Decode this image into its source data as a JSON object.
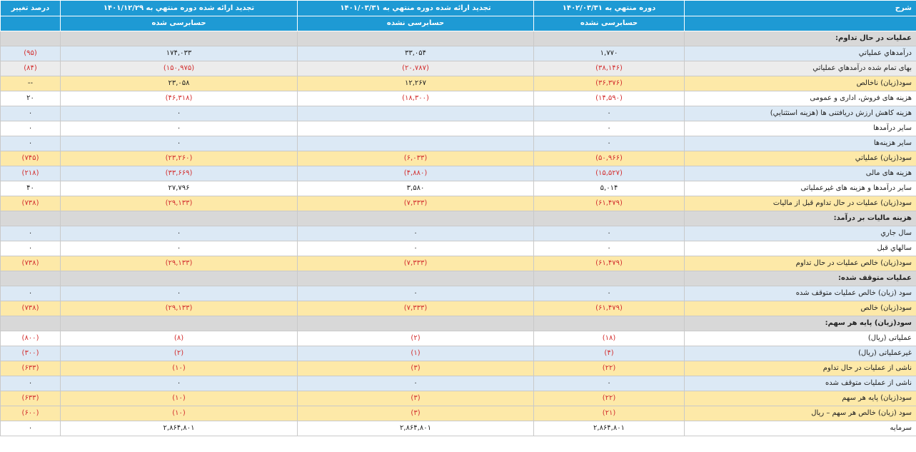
{
  "header": {
    "col_desc": "شرح",
    "col_p1": "دوره منتهي به ۱۴۰۲/۰۳/۳۱",
    "col_p2": "تجدید ارائه شده دوره منتهي به ۱۴۰۱/۰۳/۳۱",
    "col_p3": "تجدید ارائه شده دوره منتهي به ۱۴۰۱/۱۲/۲۹",
    "col_pct": "درصد تغییر",
    "audit_p1": "حسابرسی نشده",
    "audit_p2": "حسابرسی نشده",
    "audit_p3": "حسابرسی شده"
  },
  "rows": [
    {
      "kind": "section",
      "label": "عملیات در حال تداوم:"
    },
    {
      "kind": "blue",
      "label": "درآمدهاي عملياتي",
      "v": [
        "۱,۷۷۰",
        "۳۳,۰۵۴",
        "۱۷۴,۰۳۳",
        "(۹۵)"
      ]
    },
    {
      "kind": "grey",
      "label": "بهاى تمام شده درآمدهاي عملياتي",
      "v": [
        "(۳۸,۱۴۶)",
        "(۲۰,۷۸۷)",
        "(۱۵۰,۹۷۵)",
        "(۸۴)"
      ]
    },
    {
      "kind": "gold",
      "label": "سود(زيان) ناخالص",
      "v": [
        "(۳۶,۳۷۶)",
        "۱۲,۲۶۷",
        "۲۳,۰۵۸",
        "--"
      ]
    },
    {
      "kind": "white",
      "label": "هزينه هاى فروش، ادارى و عمومى",
      "v": [
        "(۱۴,۵۹۰)",
        "(۱۸,۳۰۰)",
        "(۴۶,۳۱۸)",
        "۲۰"
      ]
    },
    {
      "kind": "blue",
      "label": "هزینه کاهش ارزش دریافتنی ها (هزينه استثنايي)",
      "v": [
        "۰",
        "",
        "۰",
        "۰"
      ]
    },
    {
      "kind": "white",
      "label": "ساير درآمدها",
      "v": [
        "۰",
        "",
        "۰",
        "۰"
      ]
    },
    {
      "kind": "blue",
      "label": "سایر هزینه‌ها",
      "v": [
        "۰",
        "",
        "۰",
        "۰"
      ]
    },
    {
      "kind": "gold",
      "label": "سود(زيان) عملياتي",
      "v": [
        "(۵۰,۹۶۶)",
        "(۶,۰۳۳)",
        "(۲۳,۲۶۰)",
        "(۷۴۵)"
      ]
    },
    {
      "kind": "blue",
      "label": "هزينه هاى مالى",
      "v": [
        "(۱۵,۵۲۷)",
        "(۴,۸۸۰)",
        "(۳۳,۶۶۹)",
        "(۲۱۸)"
      ]
    },
    {
      "kind": "white",
      "label": "ساير درآمدها و هزينه هاى غيرعملياتى",
      "v": [
        "۵,۰۱۴",
        "۳,۵۸۰",
        "۲۷,۷۹۶",
        "۴۰"
      ]
    },
    {
      "kind": "gold",
      "label": "سود(زيان) عمليات در حال تداوم قبل از ماليات",
      "v": [
        "(۶۱,۴۷۹)",
        "(۷,۳۳۳)",
        "(۲۹,۱۳۳)",
        "(۷۳۸)"
      ]
    },
    {
      "kind": "section",
      "label": "هزینه مالیات بر درآمد:"
    },
    {
      "kind": "blue",
      "label": "سال جاري",
      "v": [
        "۰",
        "۰",
        "۰",
        "۰"
      ]
    },
    {
      "kind": "white",
      "label": "سالهاي قبل",
      "v": [
        "۰",
        "۰",
        "۰",
        "۰"
      ]
    },
    {
      "kind": "gold",
      "label": "سود(زيان) خالص عمليات در حال تداوم",
      "v": [
        "(۶۱,۴۷۹)",
        "(۷,۳۳۳)",
        "(۲۹,۱۳۳)",
        "(۷۳۸)"
      ]
    },
    {
      "kind": "section",
      "label": "عملیات متوقف شده:"
    },
    {
      "kind": "blue",
      "label": "سود (زيان) خالص عمليات متوقف شده",
      "v": [
        "۰",
        "۰",
        "۰",
        "۰"
      ]
    },
    {
      "kind": "gold",
      "label": "سود(زيان) خالص",
      "v": [
        "(۶۱,۴۷۹)",
        "(۷,۳۳۳)",
        "(۲۹,۱۳۳)",
        "(۷۳۸)"
      ]
    },
    {
      "kind": "section",
      "label": "سود(زیان) پایه هر سهم:"
    },
    {
      "kind": "white",
      "label": "عملیاتی (ریال)",
      "v": [
        "(۱۸)",
        "(۲)",
        "(۸)",
        "(۸۰۰)"
      ]
    },
    {
      "kind": "blue",
      "label": "غیرعملیاتی (ریال)",
      "v": [
        "(۴)",
        "(۱)",
        "(۲)",
        "(۳۰۰)"
      ]
    },
    {
      "kind": "gold",
      "label": "ناشی از عملیات در حال تداوم",
      "v": [
        "(۲۲)",
        "(۳)",
        "(۱۰)",
        "(۶۳۳)"
      ]
    },
    {
      "kind": "blue",
      "label": "ناشی از عملیات متوقف شده",
      "v": [
        "۰",
        "۰",
        "۰",
        "۰"
      ]
    },
    {
      "kind": "gold",
      "label": "سود(زيان) پایه هر سهم",
      "v": [
        "(۲۲)",
        "(۳)",
        "(۱۰)",
        "(۶۳۳)"
      ]
    },
    {
      "kind": "gold",
      "label": "سود (زيان) خالص هر سهم – ريال",
      "v": [
        "(۲۱)",
        "(۳)",
        "(۱۰)",
        "(۶۰۰)"
      ]
    },
    {
      "kind": "white",
      "label": "سرمايه",
      "v": [
        "۲,۸۶۴,۸۰۱",
        "۲,۸۶۴,۸۰۱",
        "۲,۸۶۴,۸۰۱",
        "۰"
      ]
    }
  ]
}
